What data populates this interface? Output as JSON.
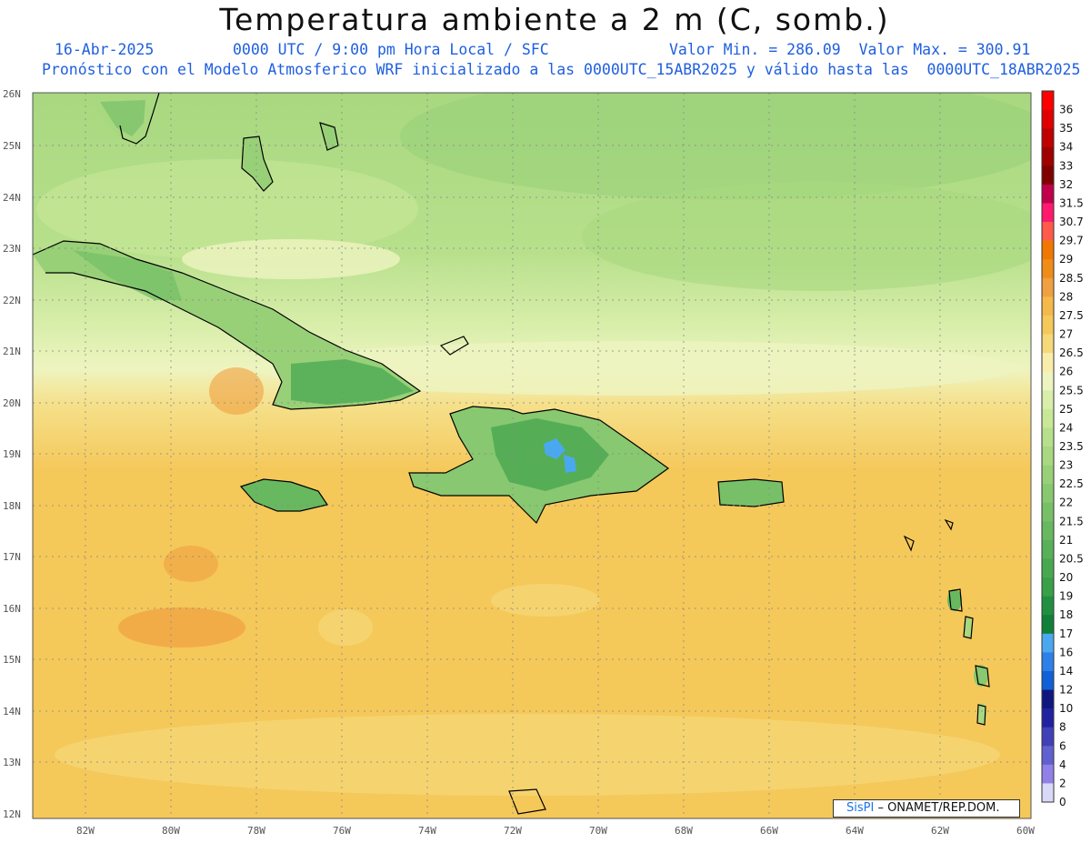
{
  "title": "Temperatura ambiente a 2 m (C, somb.)",
  "subtitle": {
    "date": "16-Abr-2025",
    "time": "0000 UTC / 9:00 pm Hora Local / SFC",
    "minmax": "Valor Min. = 286.09  Valor Max. = 300.91",
    "model": "Pronóstico con el Modelo Atmosferico WRF inicializado a las 0000UTC_15ABR2025 y válido hasta las  0000UTC_18ABR2025"
  },
  "map": {
    "lat_labels": [
      "26N",
      "25N",
      "24N",
      "23N",
      "22N",
      "21N",
      "20N",
      "19N",
      "18N",
      "17N",
      "16N",
      "15N",
      "14N",
      "13N",
      "12N"
    ],
    "lon_labels": [
      "82W",
      "80W",
      "78W",
      "76W",
      "74W",
      "72W",
      "70W",
      "68W",
      "66W",
      "64W",
      "62W",
      "60W"
    ]
  },
  "colorbar": {
    "labels": [
      "36",
      "35",
      "34",
      "33",
      "32",
      "31.5",
      "30.7",
      "29.7",
      "29",
      "28.5",
      "28",
      "27.5",
      "27",
      "26.5",
      "26",
      "25.5",
      "25",
      "24",
      "23.5",
      "23",
      "22.5",
      "22",
      "21.5",
      "21",
      "20.5",
      "20",
      "19",
      "18",
      "17",
      "16",
      "14",
      "12",
      "10",
      "8",
      "6",
      "4",
      "2",
      "0"
    ],
    "colors": [
      "#ff0000",
      "#e00000",
      "#c00000",
      "#a00000",
      "#800000",
      "#c0004a",
      "#ff1a6e",
      "#ff5a4a",
      "#f07800",
      "#f08c18",
      "#f0a040",
      "#f5b84a",
      "#f5c85a",
      "#f5d878",
      "#f8eeaa",
      "#eef4c0",
      "#d8eeaa",
      "#c8e898",
      "#b8e08c",
      "#a8d880",
      "#98d078",
      "#88c870",
      "#78c068",
      "#68b860",
      "#58b058",
      "#48a850",
      "#38a048",
      "#209040",
      "#108038",
      "#4aa8f0",
      "#2c80e8",
      "#1060d8",
      "#101880",
      "#2020a0",
      "#4040b8",
      "#6060d0",
      "#9080e8",
      "#d8d8f8"
    ]
  },
  "credit": {
    "brand": "SisPI",
    "text": " – ONAMET/REP.DOM."
  }
}
